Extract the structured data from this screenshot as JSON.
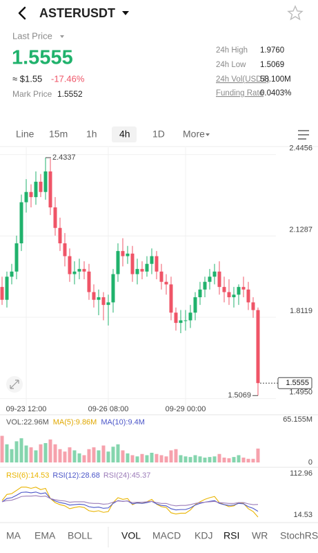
{
  "header": {
    "title": "ASTERUSDT"
  },
  "ticker": {
    "last_price_label": "Last Price",
    "last_price": "1.5555",
    "usd_price": "≈ $1.55",
    "change": "-17.46%",
    "mark_price_label": "Mark Price",
    "mark_price": "1.5552",
    "stats": [
      {
        "label": "24h High",
        "value": "1.9760"
      },
      {
        "label": "24h Low",
        "value": "1.5069"
      },
      {
        "label": "24h Vol(USDT)",
        "value": "58.100M"
      },
      {
        "label": "Funding Rate",
        "value": "0.0403%"
      }
    ]
  },
  "intervals": [
    "Line",
    "15m",
    "1h",
    "4h",
    "1D",
    "More"
  ],
  "chart_data": [
    {
      "type": "candlestick",
      "up_color": "#20b26c",
      "down_color": "#ef5467",
      "grid": true,
      "categories": [
        null,
        null,
        null,
        null,
        null,
        "09-23 12:00",
        null,
        null,
        null,
        null,
        null,
        null,
        null,
        null,
        null,
        null,
        null,
        null,
        null,
        null,
        null,
        null,
        "09-26 08:00",
        null,
        null,
        null,
        null,
        null,
        null,
        null,
        null,
        null,
        null,
        null,
        null,
        null,
        null,
        null,
        "09-29 00:00",
        null,
        null,
        null,
        null,
        null,
        null,
        null,
        null,
        null,
        null,
        null,
        null,
        null,
        null,
        null
      ],
      "open": [
        1.93,
        1.88,
        1.97,
        1.99,
        2.1,
        2.26,
        2.3,
        2.28,
        2.34,
        2.3,
        2.38,
        2.24,
        2.16,
        2.1,
        2.05,
        1.98,
        1.99,
        2.0,
        1.99,
        1.91,
        1.88,
        1.89,
        1.86,
        1.87,
        1.98,
        2.07,
        2.05,
        2.06,
        1.98,
        2.0,
        1.99,
        2.02,
        2.05,
        1.99,
        1.95,
        1.94,
        1.83,
        1.79,
        1.8,
        1.8,
        1.83,
        1.89,
        1.92,
        1.95,
        1.97,
        1.99,
        1.93,
        1.91,
        1.89,
        1.9,
        1.93,
        1.92,
        1.87,
        1.84
      ],
      "high": [
        1.97,
        1.99,
        2.02,
        2.13,
        2.29,
        2.35,
        2.33,
        2.38,
        2.37,
        2.4337,
        2.43,
        2.28,
        2.2,
        2.14,
        2.08,
        2.03,
        2.04,
        2.03,
        2.02,
        1.94,
        1.92,
        1.91,
        1.9,
        2.0,
        2.1,
        2.12,
        2.09,
        2.09,
        2.04,
        2.03,
        2.05,
        2.08,
        2.07,
        2.02,
        1.98,
        1.97,
        1.85,
        1.84,
        1.84,
        1.86,
        1.91,
        1.95,
        1.97,
        2.0,
        2.02,
        2.03,
        1.97,
        1.96,
        1.93,
        1.94,
        1.97,
        1.95,
        1.89,
        1.85
      ],
      "low": [
        1.86,
        1.85,
        1.94,
        1.96,
        2.07,
        2.22,
        2.24,
        2.25,
        2.28,
        2.27,
        2.21,
        2.13,
        2.07,
        2.01,
        1.95,
        1.94,
        1.96,
        1.96,
        1.88,
        1.85,
        1.82,
        1.8,
        1.78,
        1.83,
        1.95,
        2.01,
        2.02,
        1.95,
        1.94,
        1.96,
        1.97,
        1.98,
        1.96,
        1.92,
        1.9,
        1.8,
        1.76,
        1.75,
        1.76,
        1.77,
        1.8,
        1.86,
        1.89,
        1.92,
        1.94,
        1.9,
        1.87,
        1.86,
        1.85,
        1.86,
        1.89,
        1.84,
        1.81,
        1.5069
      ],
      "close": [
        1.88,
        1.97,
        1.99,
        2.1,
        2.26,
        2.3,
        2.28,
        2.34,
        2.3,
        2.38,
        2.24,
        2.16,
        2.1,
        2.05,
        1.98,
        1.99,
        2.0,
        1.99,
        1.91,
        1.88,
        1.89,
        1.86,
        1.87,
        1.98,
        2.07,
        2.05,
        2.06,
        1.98,
        2.0,
        1.99,
        2.02,
        2.05,
        1.99,
        1.95,
        1.94,
        1.83,
        1.79,
        1.8,
        1.8,
        1.83,
        1.89,
        1.92,
        1.95,
        1.97,
        1.99,
        1.93,
        1.91,
        1.89,
        1.9,
        1.93,
        1.92,
        1.87,
        1.84,
        1.5555
      ],
      "ylim": [
        1.4376,
        2.4743
      ],
      "yticks": [
        2.4456,
        2.1287,
        1.8119,
        {
          "value": 1.495,
          "label": "1.4950"
        }
      ]
    },
    {
      "type": "bar",
      "grid": false,
      "series": [
        {
          "name": "VOL:22.96M",
          "color": "#555555",
          "values": [
            44,
            30,
            22,
            35,
            40,
            28,
            25,
            20,
            30,
            32,
            38,
            30,
            22,
            18,
            25,
            20,
            15,
            12,
            22,
            25,
            20,
            28,
            18,
            26,
            30,
            20,
            15,
            12,
            10,
            14,
            12,
            16,
            14,
            12,
            10,
            20,
            22,
            12,
            10,
            9,
            12,
            10,
            8,
            9,
            10,
            14,
            8,
            7,
            9,
            12,
            8,
            6,
            6,
            22.96
          ]
        }
      ],
      "indicators": [
        {
          "name": "MA(5):9.86M",
          "color": "#e0a800"
        },
        {
          "name": "MA(10):9.4M",
          "color": "#4a55c8"
        }
      ],
      "ylim": [
        0,
        65.155
      ],
      "yticks": [
        0,
        {
          "value": 65.155,
          "label": "65.155M"
        }
      ]
    },
    {
      "type": "line",
      "grid": false,
      "series": [
        {
          "name": "RSI(6):14.53",
          "color": "#e9b400",
          "values": [
            55,
            70,
            72,
            80,
            88,
            88,
            85,
            88,
            82,
            85,
            60,
            50,
            45,
            42,
            35,
            38,
            40,
            38,
            30,
            28,
            30,
            26,
            28,
            50,
            62,
            58,
            60,
            45,
            50,
            48,
            52,
            58,
            46,
            40,
            38,
            25,
            22,
            24,
            24,
            32,
            45,
            52,
            58,
            62,
            65,
            50,
            45,
            40,
            42,
            50,
            48,
            35,
            28,
            14.53
          ]
        },
        {
          "name": "RSI(12):28.68",
          "color": "#4a55c8",
          "values": [
            52,
            60,
            62,
            68,
            75,
            76,
            74,
            76,
            72,
            74,
            60,
            54,
            50,
            48,
            44,
            45,
            46,
            45,
            40,
            38,
            39,
            36,
            37,
            48,
            55,
            53,
            54,
            47,
            49,
            48,
            50,
            53,
            47,
            43,
            42,
            35,
            32,
            33,
            33,
            37,
            44,
            48,
            51,
            53,
            55,
            48,
            45,
            43,
            44,
            48,
            47,
            40,
            36,
            28.68
          ]
        },
        {
          "name": "RSI(24):45.37",
          "color": "#9b7bb8",
          "values": [
            52,
            55,
            56,
            60,
            65,
            66,
            66,
            67,
            65,
            66,
            60,
            57,
            55,
            54,
            51,
            52,
            52,
            52,
            49,
            48,
            48,
            46,
            47,
            51,
            54,
            53,
            54,
            50,
            51,
            51,
            52,
            53,
            50,
            48,
            48,
            44,
            42,
            43,
            43,
            45,
            48,
            50,
            51,
            52,
            53,
            50,
            49,
            48,
            48,
            50,
            50,
            47,
            45,
            45.37
          ]
        }
      ],
      "ylim": [
        14.53,
        112.96
      ],
      "yticks": [
        112.96,
        14.53
      ]
    }
  ],
  "indicator_tabs": [
    "MA",
    "EMA",
    "BOLL",
    "VOL",
    "MACD",
    "KDJ",
    "RSI",
    "WR",
    "StochRS"
  ]
}
